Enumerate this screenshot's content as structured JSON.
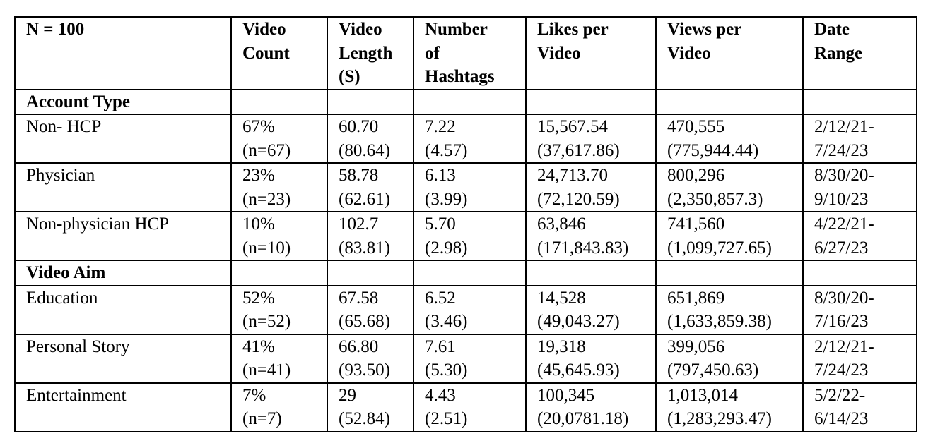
{
  "table": {
    "headers": [
      "N = 100",
      "Video\nCount",
      "Video\nLength\n(S)",
      "Number\nof\nHashtags",
      "Likes per\nVideo",
      "Views per\nVideo",
      "Date\nRange"
    ],
    "sections": [
      {
        "title": "Account Type",
        "rows": [
          {
            "label": "Non- HCP",
            "count": "67%\n(n=67)",
            "length": "60.70\n(80.64)",
            "hashtags": "7.22\n(4.57)",
            "likes": "15,567.54\n(37,617.86)",
            "views": "470,555\n(775,944.44)",
            "dates": "2/12/21-\n7/24/23"
          },
          {
            "label": "Physician",
            "count": "23%\n(n=23)",
            "length": "58.78\n(62.61)",
            "hashtags": "6.13\n(3.99)",
            "likes": "24,713.70\n(72,120.59)",
            "views": "800,296\n(2,350,857.3)",
            "dates": "8/30/20-\n9/10/23"
          },
          {
            "label": "Non-physician HCP",
            "count": "10%\n(n=10)",
            "length": "102.7\n(83.81)",
            "hashtags": "5.70\n(2.98)",
            "likes": "63,846\n(171,843.83)",
            "views": "741,560\n(1,099,727.65)",
            "dates": "4/22/21-\n6/27/23"
          }
        ]
      },
      {
        "title": "Video Aim",
        "rows": [
          {
            "label": "Education",
            "count": "52%\n(n=52)",
            "length": "67.58\n(65.68)",
            "hashtags": "6.52\n(3.46)",
            "likes": "14,528\n(49,043.27)",
            "views": "651,869\n(1,633,859.38)",
            "dates": "8/30/20-\n7/16/23"
          },
          {
            "label": "Personal Story",
            "count": "41%\n(n=41)",
            "length": "66.80\n(93.50)",
            "hashtags": "7.61\n(5.30)",
            "likes": "19,318\n(45,645.93)",
            "views": "399,056\n(797,450.63)",
            "dates": "2/12/21-\n7/24/23"
          },
          {
            "label": "Entertainment",
            "count": "7%\n(n=7)",
            "length": "29\n(52.84)",
            "hashtags": "4.43\n(2.51)",
            "likes": "100,345\n(20,0781.18)",
            "views": "1,013,014\n(1,283,293.47)",
            "dates": "5/2/22-\n6/14/23"
          }
        ]
      }
    ]
  }
}
